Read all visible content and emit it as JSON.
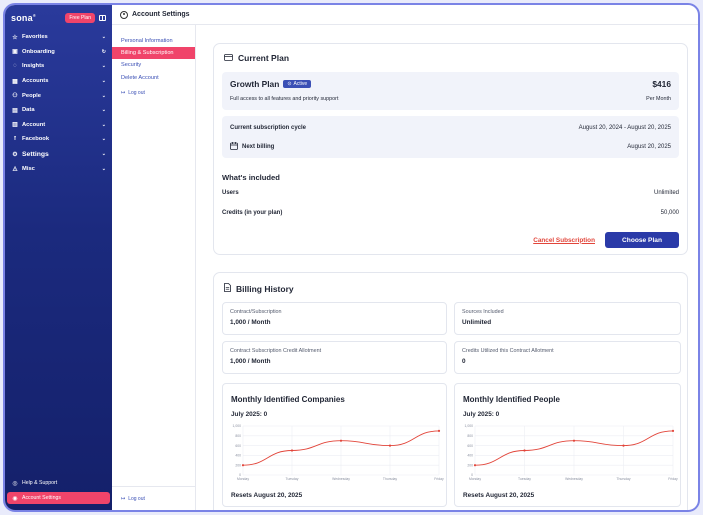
{
  "sidebar": {
    "logo": "sona",
    "plan_badge": "Free Plan",
    "items": [
      {
        "label": "Favorites",
        "icon": "star-icon",
        "glyph": "☆",
        "trail": "⌄"
      },
      {
        "label": "Onboarding",
        "icon": "onboarding-icon",
        "glyph": "▣",
        "trail": "↻"
      },
      {
        "label": "Insights",
        "icon": "lightbulb-icon",
        "glyph": "◌",
        "trail": "⌄"
      },
      {
        "label": "Accounts",
        "icon": "building-icon",
        "glyph": "▦",
        "trail": "⌄"
      },
      {
        "label": "People",
        "icon": "people-icon",
        "glyph": "⚇",
        "trail": "⌄"
      },
      {
        "label": "Data",
        "icon": "database-icon",
        "glyph": "▤",
        "trail": "⌄"
      },
      {
        "label": "Account",
        "icon": "account-icon",
        "glyph": "▥",
        "trail": "⌄"
      },
      {
        "label": "Facebook",
        "icon": "facebook-icon",
        "glyph": "f",
        "trail": "⌄"
      },
      {
        "label": "Settings",
        "icon": "gear-icon",
        "glyph": "⚙",
        "trail": "⌄"
      },
      {
        "label": "Misc",
        "icon": "misc-icon",
        "glyph": "◬",
        "trail": "⌄"
      }
    ],
    "help_label": "Help & Support",
    "account_settings_label": "Account Settings"
  },
  "topbar": {
    "title": "Account Settings"
  },
  "subnav": {
    "items": [
      "Personal Information",
      "Billing & Subscription",
      "Security",
      "Delete Account"
    ],
    "active_index": 1,
    "logout_label": "Log out",
    "bottom_logout_label": "Log out"
  },
  "current_plan": {
    "title": "Current Plan",
    "plan_name": "Growth Plan",
    "status": "Active",
    "price": "$416",
    "description": "Full access to all features and priority support",
    "period": "Per Month",
    "cycle_label": "Current  subscription cycle",
    "cycle_value": "August 20, 2024 - August 20, 2025",
    "next_billing_label": "Next billing",
    "next_billing_value": "August 20, 2025",
    "included_title": "What's included",
    "users_label": "Users",
    "users_value": "Unlimited",
    "credits_label": "Credits (in your plan)",
    "credits_value": "50,000",
    "cancel_label": "Cancel Subscription",
    "choose_label": "Choose Plan"
  },
  "billing_history": {
    "title": "Billing History",
    "stats": [
      {
        "label": "Contract/Subscription",
        "value": "1,000 / Month"
      },
      {
        "label": "Sources Included",
        "value": "Unlimited"
      },
      {
        "label": "Contract Subscription Credit Allotment",
        "value": "1,000 / Month"
      },
      {
        "label": "Credits Utilized this Contract Allotment",
        "value": "0"
      }
    ]
  },
  "chart_data": [
    {
      "type": "line",
      "title": "Monthly Identified Companies",
      "subtitle": "July 2025: 0",
      "footer": "Resets August 20, 2025",
      "categories": [
        "Monday",
        "Tuesday",
        "Wednesday",
        "Thursday",
        "Friday"
      ],
      "values": [
        200,
        500,
        700,
        600,
        900
      ],
      "yticks": [
        "1,000",
        "800",
        "600",
        "400",
        "200",
        "0"
      ],
      "ylim": [
        0,
        1000
      ],
      "color": "#e2453a",
      "grid": true
    },
    {
      "type": "line",
      "title": "Monthly Identified People",
      "subtitle": "July 2025: 0",
      "footer": "Resets August 20, 2025",
      "categories": [
        "Monday",
        "Tuesday",
        "Wednesday",
        "Thursday",
        "Friday"
      ],
      "values": [
        200,
        500,
        700,
        600,
        900
      ],
      "yticks": [
        "1,000",
        "800",
        "600",
        "400",
        "200",
        "0"
      ],
      "ylim": [
        0,
        1000
      ],
      "color": "#e2453a",
      "grid": true
    }
  ]
}
